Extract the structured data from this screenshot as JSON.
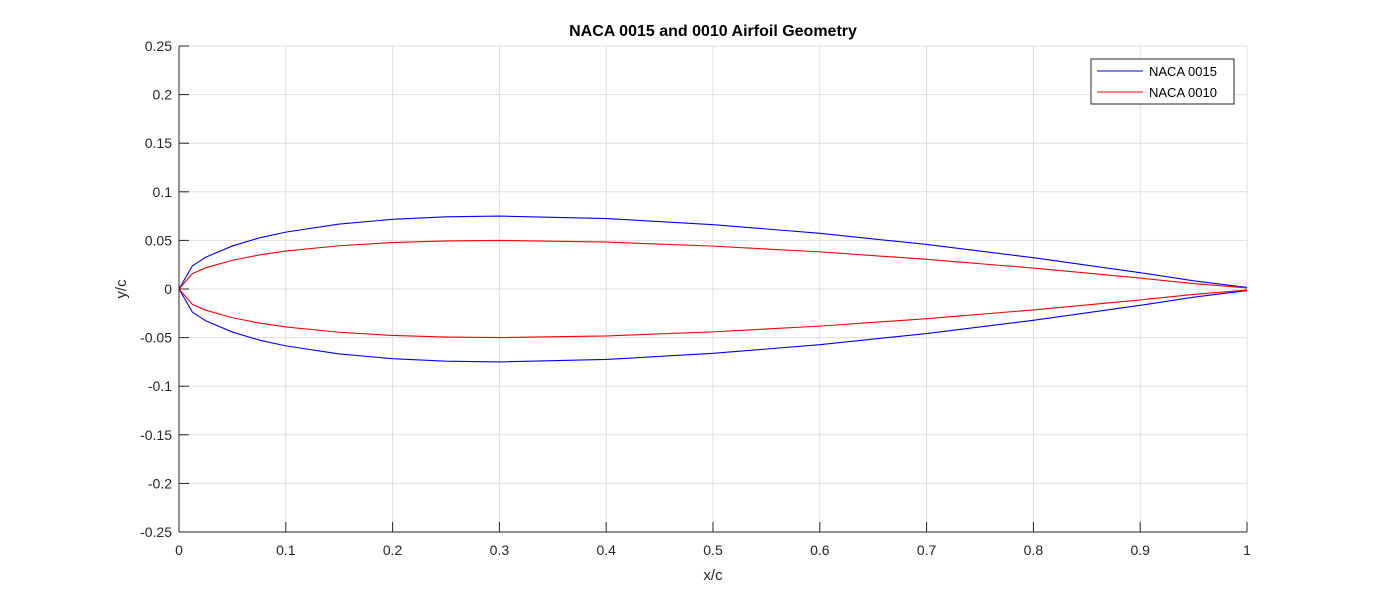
{
  "chart_data": {
    "type": "line",
    "title": "NACA 0015 and 0010 Airfoil Geometry",
    "xlabel": "x/c",
    "ylabel": "y/c",
    "xlim": [
      0,
      1
    ],
    "ylim": [
      -0.25,
      0.25
    ],
    "xticks": [
      0,
      0.1,
      0.2,
      0.3,
      0.4,
      0.5,
      0.6,
      0.7,
      0.8,
      0.9,
      1
    ],
    "yticks": [
      -0.25,
      -0.2,
      -0.15,
      -0.1,
      -0.05,
      0,
      0.05,
      0.1,
      0.15,
      0.2,
      0.25
    ],
    "xtick_labels": [
      "0",
      "0.1",
      "0.2",
      "0.3",
      "0.4",
      "0.5",
      "0.6",
      "0.7",
      "0.8",
      "0.9",
      "1"
    ],
    "ytick_labels": [
      "-0.25",
      "-0.2",
      "-0.15",
      "-0.1",
      "-0.05",
      "0",
      "0.05",
      "0.1",
      "0.15",
      "0.2",
      "0.25"
    ],
    "grid": true,
    "legend_position": "top-right",
    "x": [
      0,
      0.0125,
      0.025,
      0.05,
      0.075,
      0.1,
      0.15,
      0.2,
      0.25,
      0.3,
      0.4,
      0.5,
      0.6,
      0.7,
      0.8,
      0.9,
      0.95,
      1
    ],
    "series": [
      {
        "name": "NACA 0015",
        "color": "#0000ff",
        "upper": [
          0,
          0.0237,
          0.0327,
          0.0443,
          0.0525,
          0.0585,
          0.0668,
          0.0717,
          0.0743,
          0.075,
          0.0725,
          0.0662,
          0.0573,
          0.0458,
          0.0322,
          0.0168,
          0.0084,
          0.0016
        ],
        "lower": [
          0,
          -0.0237,
          -0.0327,
          -0.0443,
          -0.0525,
          -0.0585,
          -0.0668,
          -0.0717,
          -0.0743,
          -0.075,
          -0.0725,
          -0.0662,
          -0.0573,
          -0.0458,
          -0.0322,
          -0.0168,
          -0.0084,
          -0.0016
        ]
      },
      {
        "name": "NACA 0010",
        "color": "#ff0000",
        "upper": [
          0,
          0.0158,
          0.0218,
          0.0296,
          0.035,
          0.039,
          0.0445,
          0.0478,
          0.0495,
          0.05,
          0.0483,
          0.0441,
          0.0382,
          0.0305,
          0.0215,
          0.0112,
          0.0056,
          0.0011
        ],
        "lower": [
          0,
          -0.0158,
          -0.0218,
          -0.0296,
          -0.035,
          -0.039,
          -0.0445,
          -0.0478,
          -0.0495,
          -0.05,
          -0.0483,
          -0.0441,
          -0.0382,
          -0.0305,
          -0.0215,
          -0.0112,
          -0.0056,
          -0.0011
        ]
      }
    ]
  }
}
